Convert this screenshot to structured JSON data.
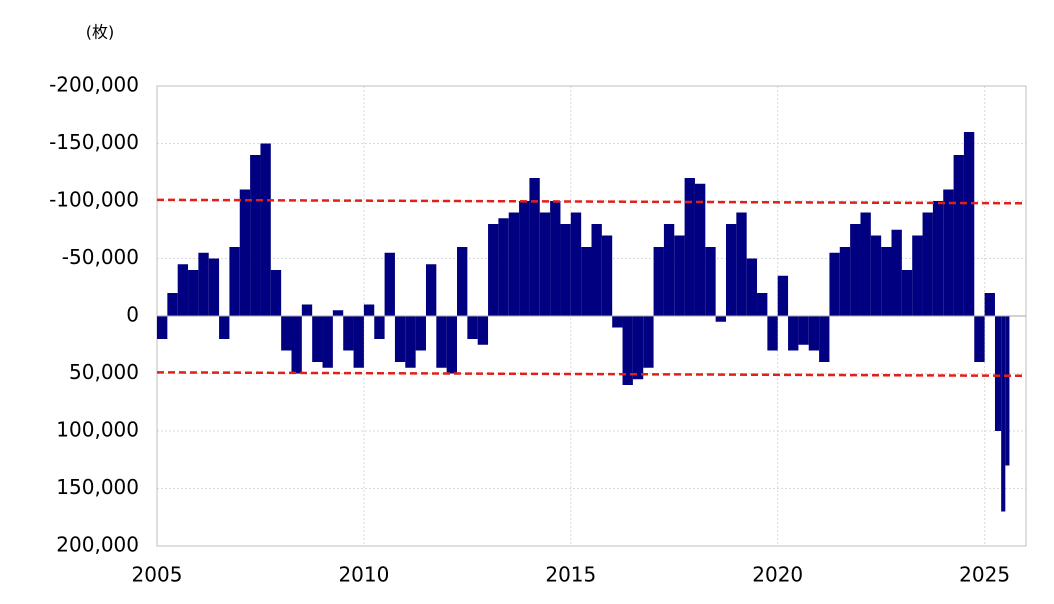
{
  "chart_data": {
    "type": "bar",
    "unit_label": "(枚)",
    "x": [
      2005.0,
      2005.25,
      2005.5,
      2005.75,
      2006.0,
      2006.25,
      2006.5,
      2006.75,
      2007.0,
      2007.25,
      2007.5,
      2007.75,
      2008.0,
      2008.25,
      2008.5,
      2008.75,
      2009.0,
      2009.25,
      2009.5,
      2009.75,
      2010.0,
      2010.25,
      2010.5,
      2010.75,
      2011.0,
      2011.25,
      2011.5,
      2011.75,
      2012.0,
      2012.25,
      2012.5,
      2012.75,
      2013.0,
      2013.25,
      2013.5,
      2013.75,
      2014.0,
      2014.25,
      2014.5,
      2014.75,
      2015.0,
      2015.25,
      2015.5,
      2015.75,
      2016.0,
      2016.25,
      2016.5,
      2016.75,
      2017.0,
      2017.25,
      2017.5,
      2017.75,
      2018.0,
      2018.25,
      2018.5,
      2018.75,
      2019.0,
      2019.25,
      2019.5,
      2019.75,
      2020.0,
      2020.25,
      2020.5,
      2020.75,
      2021.0,
      2021.25,
      2021.5,
      2021.75,
      2022.0,
      2022.25,
      2022.5,
      2022.75,
      2023.0,
      2023.25,
      2023.5,
      2023.75,
      2024.0,
      2024.25,
      2024.5,
      2024.75,
      2025.0,
      2025.25,
      2025.4,
      2025.5
    ],
    "values": [
      20000,
      -20000,
      -45000,
      -40000,
      -55000,
      -50000,
      20000,
      -60000,
      -110000,
      -140000,
      -150000,
      -40000,
      30000,
      50000,
      -10000,
      40000,
      45000,
      -5000,
      30000,
      45000,
      -10000,
      20000,
      -55000,
      40000,
      45000,
      30000,
      -45000,
      45000,
      50000,
      -60000,
      20000,
      25000,
      -80000,
      -85000,
      -90000,
      -100000,
      -120000,
      -90000,
      -100000,
      -80000,
      -90000,
      -60000,
      -80000,
      -70000,
      10000,
      60000,
      55000,
      45000,
      -60000,
      -80000,
      -70000,
      -120000,
      -115000,
      -60000,
      5000,
      -80000,
      -90000,
      -50000,
      -20000,
      30000,
      -35000,
      30000,
      25000,
      30000,
      40000,
      -55000,
      -60000,
      -80000,
      -90000,
      -70000,
      -60000,
      -75000,
      -40000,
      -70000,
      -90000,
      -100000,
      -110000,
      -140000,
      -160000,
      40000,
      -20000,
      100000,
      170000,
      130000
    ],
    "color": "#000080",
    "xlim": [
      2005,
      2026
    ],
    "xticks": [
      2005,
      2010,
      2015,
      2020,
      2025
    ],
    "ylim": [
      -200000,
      200000
    ],
    "y_inverted": true,
    "yticks": [
      {
        "value": -200000,
        "label": "-200,000"
      },
      {
        "value": -150000,
        "label": "-150,000"
      },
      {
        "value": -100000,
        "label": "-100,000"
      },
      {
        "value": -50000,
        "label": "-50,000"
      },
      0,
      {
        "value": 50000,
        "label": "50,000"
      },
      {
        "value": 100000,
        "label": "100,000"
      },
      {
        "value": 150000,
        "label": "150,000"
      },
      {
        "value": 200000,
        "label": "200,000"
      }
    ],
    "negative_tick_color": "#e0201b",
    "grid": true,
    "reference_lines": [
      {
        "x": [
          2005,
          2026
        ],
        "y": [
          -101000,
          -98000
        ],
        "color": "#e0201b"
      },
      {
        "x": [
          2005,
          2026
        ],
        "y": [
          49000,
          52000
        ],
        "color": "#e0201b"
      }
    ]
  }
}
